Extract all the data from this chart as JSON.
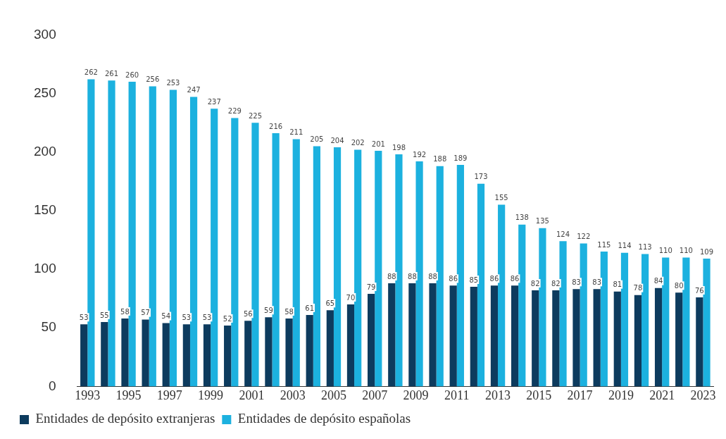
{
  "chart_data": {
    "type": "bar",
    "categories": [
      "1993",
      null,
      "1995",
      null,
      "1997",
      null,
      "1999",
      null,
      "2001",
      null,
      "2003",
      null,
      "2005",
      null,
      "2007",
      null,
      "2009",
      null,
      "2011",
      null,
      "2013",
      null,
      "2015",
      null,
      "2017",
      null,
      "2019",
      null,
      "2021",
      null,
      "2023"
    ],
    "series": [
      {
        "name": "Entidades de depósito extranjeras",
        "color": "#0d3b5e",
        "values": [
          53,
          55,
          58,
          57,
          54,
          53,
          53,
          52,
          56,
          59,
          58,
          61,
          65,
          70,
          79,
          88,
          88,
          88,
          86,
          85,
          86,
          86,
          82,
          82,
          83,
          83,
          81,
          78,
          84,
          80,
          76
        ]
      },
      {
        "name": "Entidades de depósito españolas",
        "color": "#1cb1df",
        "values": [
          262,
          261,
          260,
          256,
          253,
          247,
          237,
          229,
          225,
          216,
          211,
          205,
          204,
          202,
          201,
          198,
          192,
          188,
          189,
          173,
          155,
          138,
          135,
          124,
          122,
          115,
          114,
          113,
          110,
          110,
          109
        ]
      }
    ],
    "ylim": [
      0,
      300
    ],
    "yticks": [
      0,
      50,
      100,
      150,
      200,
      250,
      300
    ],
    "grid": false,
    "legend": "bottom",
    "data_labels": true
  }
}
